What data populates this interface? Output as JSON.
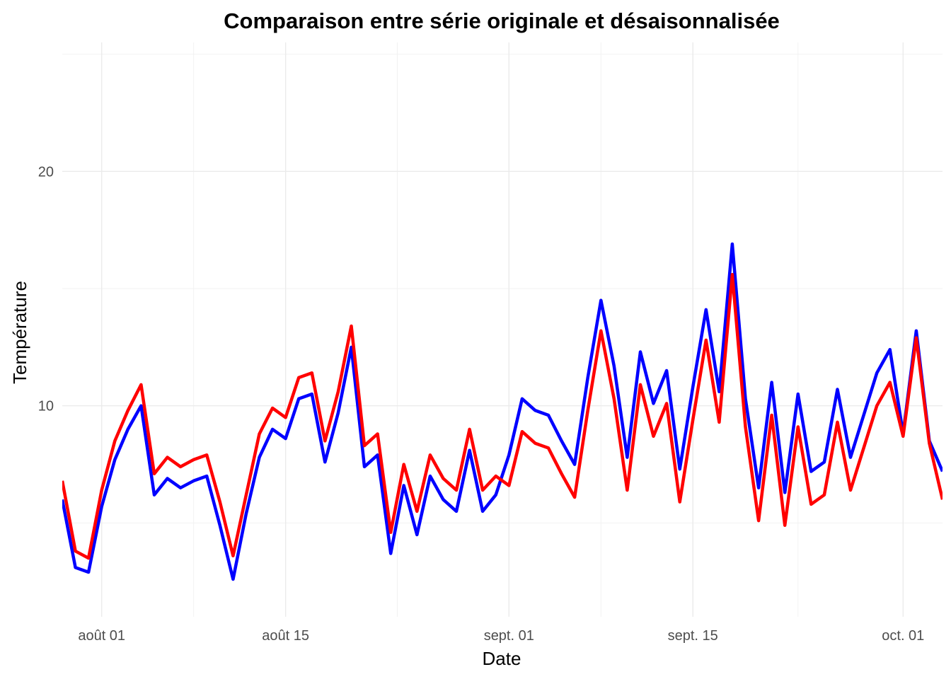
{
  "chart_data": {
    "type": "line",
    "title": "Comparaison entre série originale et désaisonnalisée",
    "xlabel": "Date",
    "ylabel": "Température",
    "x_tick_labels": [
      {
        "date": "2024-08-01",
        "label": "août 01"
      },
      {
        "date": "2024-08-15",
        "label": "août 15"
      },
      {
        "date": "2024-09-01",
        "label": "sept. 01"
      },
      {
        "date": "2024-09-15",
        "label": "sept. 15"
      },
      {
        "date": "2024-10-01",
        "label": "oct. 01"
      }
    ],
    "y_ticks": [
      10,
      20
    ],
    "xlim": [
      "2024-07-29",
      "2024-10-04"
    ],
    "ylim": [
      1,
      25.5
    ],
    "grid": true,
    "legend": "none",
    "series": [
      {
        "color": "#0000ff",
        "points": [
          [
            "2024-07-29",
            6.0
          ],
          [
            "2024-07-30",
            3.1
          ],
          [
            "2024-07-31",
            2.9
          ],
          [
            "2024-08-01",
            5.7
          ],
          [
            "2024-08-02",
            7.7
          ],
          [
            "2024-08-03",
            9.0
          ],
          [
            "2024-08-04",
            10.0
          ],
          [
            "2024-08-05",
            6.2
          ],
          [
            "2024-08-06",
            6.9
          ],
          [
            "2024-08-07",
            6.5
          ],
          [
            "2024-08-08",
            6.8
          ],
          [
            "2024-08-09",
            7.0
          ],
          [
            "2024-08-10",
            4.9
          ],
          [
            "2024-08-11",
            2.6
          ],
          [
            "2024-08-12",
            5.4
          ],
          [
            "2024-08-13",
            7.8
          ],
          [
            "2024-08-14",
            9.0
          ],
          [
            "2024-08-15",
            8.6
          ],
          [
            "2024-08-16",
            10.3
          ],
          [
            "2024-08-17",
            10.5
          ],
          [
            "2024-08-18",
            7.6
          ],
          [
            "2024-08-19",
            9.7
          ],
          [
            "2024-08-20",
            12.5
          ],
          [
            "2024-08-21",
            7.4
          ],
          [
            "2024-08-22",
            7.9
          ],
          [
            "2024-08-23",
            3.7
          ],
          [
            "2024-08-24",
            6.6
          ],
          [
            "2024-08-25",
            4.5
          ],
          [
            "2024-08-26",
            7.0
          ],
          [
            "2024-08-27",
            6.0
          ],
          [
            "2024-08-28",
            5.5
          ],
          [
            "2024-08-29",
            8.1
          ],
          [
            "2024-08-30",
            5.5
          ],
          [
            "2024-08-31",
            6.2
          ],
          [
            "2024-09-01",
            7.9
          ],
          [
            "2024-09-02",
            10.3
          ],
          [
            "2024-09-03",
            9.8
          ],
          [
            "2024-09-04",
            9.6
          ],
          [
            "2024-09-05",
            8.5
          ],
          [
            "2024-09-06",
            7.5
          ],
          [
            "2024-09-07",
            11.2
          ],
          [
            "2024-09-08",
            14.5
          ],
          [
            "2024-09-09",
            11.7
          ],
          [
            "2024-09-10",
            7.8
          ],
          [
            "2024-09-11",
            12.3
          ],
          [
            "2024-09-12",
            10.1
          ],
          [
            "2024-09-13",
            11.5
          ],
          [
            "2024-09-14",
            7.3
          ],
          [
            "2024-09-15",
            10.8
          ],
          [
            "2024-09-16",
            14.1
          ],
          [
            "2024-09-17",
            10.6
          ],
          [
            "2024-09-18",
            16.9
          ],
          [
            "2024-09-19",
            10.3
          ],
          [
            "2024-09-20",
            6.5
          ],
          [
            "2024-09-21",
            11.0
          ],
          [
            "2024-09-22",
            6.3
          ],
          [
            "2024-09-23",
            10.5
          ],
          [
            "2024-09-24",
            7.2
          ],
          [
            "2024-09-25",
            7.6
          ],
          [
            "2024-09-26",
            10.7
          ],
          [
            "2024-09-27",
            7.8
          ],
          [
            "2024-09-28",
            9.6
          ],
          [
            "2024-09-29",
            11.4
          ],
          [
            "2024-09-30",
            12.4
          ],
          [
            "2024-10-01",
            8.8
          ],
          [
            "2024-10-02",
            13.2
          ],
          [
            "2024-10-03",
            8.5
          ],
          [
            "2024-10-04",
            7.2
          ]
        ]
      },
      {
        "color": "#ff0000",
        "points": [
          [
            "2024-07-29",
            6.8
          ],
          [
            "2024-07-30",
            3.8
          ],
          [
            "2024-07-31",
            3.5
          ],
          [
            "2024-08-01",
            6.4
          ],
          [
            "2024-08-02",
            8.5
          ],
          [
            "2024-08-03",
            9.8
          ],
          [
            "2024-08-04",
            10.9
          ],
          [
            "2024-08-05",
            7.1
          ],
          [
            "2024-08-06",
            7.8
          ],
          [
            "2024-08-07",
            7.4
          ],
          [
            "2024-08-08",
            7.7
          ],
          [
            "2024-08-09",
            7.9
          ],
          [
            "2024-08-10",
            5.9
          ],
          [
            "2024-08-11",
            3.6
          ],
          [
            "2024-08-12",
            6.2
          ],
          [
            "2024-08-13",
            8.8
          ],
          [
            "2024-08-14",
            9.9
          ],
          [
            "2024-08-15",
            9.5
          ],
          [
            "2024-08-16",
            11.2
          ],
          [
            "2024-08-17",
            11.4
          ],
          [
            "2024-08-18",
            8.5
          ],
          [
            "2024-08-19",
            10.6
          ],
          [
            "2024-08-20",
            13.4
          ],
          [
            "2024-08-21",
            8.3
          ],
          [
            "2024-08-22",
            8.8
          ],
          [
            "2024-08-23",
            4.6
          ],
          [
            "2024-08-24",
            7.5
          ],
          [
            "2024-08-25",
            5.5
          ],
          [
            "2024-08-26",
            7.9
          ],
          [
            "2024-08-27",
            6.9
          ],
          [
            "2024-08-28",
            6.4
          ],
          [
            "2024-08-29",
            9.0
          ],
          [
            "2024-08-30",
            6.4
          ],
          [
            "2024-08-31",
            7.0
          ],
          [
            "2024-09-01",
            6.6
          ],
          [
            "2024-09-02",
            8.9
          ],
          [
            "2024-09-03",
            8.4
          ],
          [
            "2024-09-04",
            8.2
          ],
          [
            "2024-09-05",
            7.1
          ],
          [
            "2024-09-06",
            6.1
          ],
          [
            "2024-09-07",
            9.8
          ],
          [
            "2024-09-08",
            13.2
          ],
          [
            "2024-09-09",
            10.3
          ],
          [
            "2024-09-10",
            6.4
          ],
          [
            "2024-09-11",
            10.9
          ],
          [
            "2024-09-12",
            8.7
          ],
          [
            "2024-09-13",
            10.1
          ],
          [
            "2024-09-14",
            5.9
          ],
          [
            "2024-09-15",
            9.4
          ],
          [
            "2024-09-16",
            12.8
          ],
          [
            "2024-09-17",
            9.3
          ],
          [
            "2024-09-18",
            15.6
          ],
          [
            "2024-09-19",
            9.1
          ],
          [
            "2024-09-20",
            5.1
          ],
          [
            "2024-09-21",
            9.6
          ],
          [
            "2024-09-22",
            4.9
          ],
          [
            "2024-09-23",
            9.1
          ],
          [
            "2024-09-24",
            5.8
          ],
          [
            "2024-09-25",
            6.2
          ],
          [
            "2024-09-26",
            9.3
          ],
          [
            "2024-09-27",
            6.4
          ],
          [
            "2024-09-28",
            8.2
          ],
          [
            "2024-09-29",
            10.0
          ],
          [
            "2024-09-30",
            11.0
          ],
          [
            "2024-10-01",
            8.7
          ],
          [
            "2024-10-02",
            12.9
          ],
          [
            "2024-10-03",
            8.4
          ],
          [
            "2024-10-04",
            6.0
          ]
        ]
      }
    ]
  }
}
